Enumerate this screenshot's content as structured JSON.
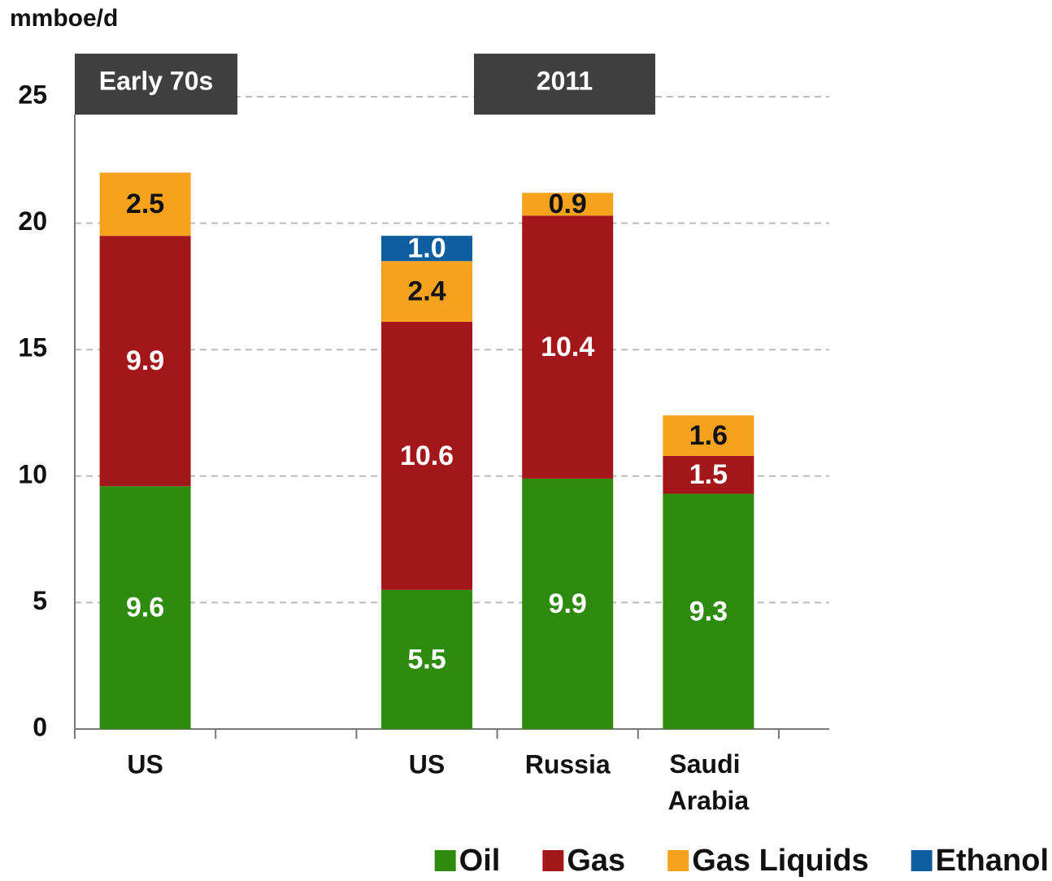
{
  "chart_data": {
    "type": "stacked_bar",
    "y_axis_label": "mmboe/d",
    "annotations": [
      "Early 70s",
      "2011"
    ],
    "categories": [
      "US",
      null,
      "US",
      "Russia",
      "Saudi Arabia"
    ],
    "series": [
      {
        "name": "Oil",
        "color": "#2e8b0f",
        "label_color": "#ffffff",
        "values": [
          9.6,
          null,
          5.5,
          9.9,
          9.3
        ]
      },
      {
        "name": "Gas",
        "color": "#a3161a",
        "label_color": "#ffffff",
        "values": [
          9.9,
          null,
          10.6,
          10.4,
          1.5
        ]
      },
      {
        "name": "Gas Liquids",
        "color": "#f5a21f",
        "label_color": "#111111",
        "values": [
          2.5,
          null,
          2.4,
          0.9,
          1.6
        ]
      },
      {
        "name": "Ethanol",
        "color": "#0f5fa0",
        "label_color": "#ffffff",
        "values": [
          null,
          null,
          1.0,
          null,
          null
        ],
        "value_labels": [
          null,
          null,
          "1.0",
          null,
          null
        ]
      }
    ],
    "ylim": [
      0,
      25
    ],
    "yticks": [
      0,
      5,
      10,
      15,
      20,
      25
    ],
    "grid": true,
    "legend": "bottom-right"
  }
}
